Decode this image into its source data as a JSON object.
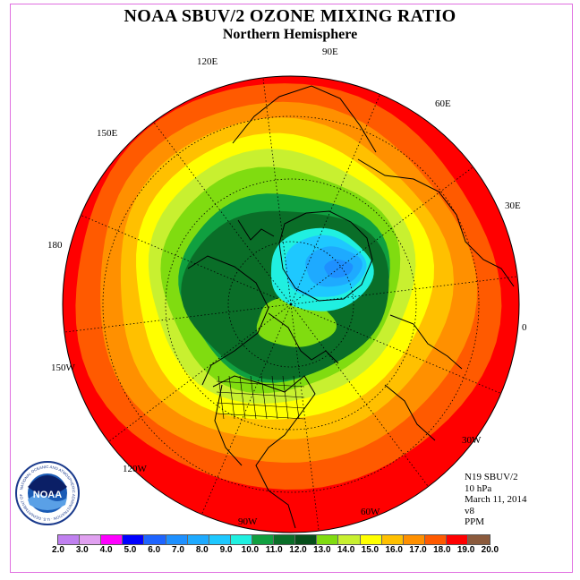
{
  "title": "NOAA SBUV/2 OZONE MIXING RATIO",
  "subtitle": "Northern Hemisphere",
  "longitude_labels": [
    {
      "text": "90E",
      "id": "lon-90e"
    },
    {
      "text": "120E",
      "id": "lon-120e"
    },
    {
      "text": "60E",
      "id": "lon-60e"
    },
    {
      "text": "150E",
      "id": "lon-150e"
    },
    {
      "text": "30E",
      "id": "lon-30e"
    },
    {
      "text": "180",
      "id": "lon-180"
    },
    {
      "text": "0",
      "id": "lon-0"
    },
    {
      "text": "150W",
      "id": "lon-150w"
    },
    {
      "text": "30W",
      "id": "lon-30w"
    },
    {
      "text": "120W",
      "id": "lon-120w"
    },
    {
      "text": "60W",
      "id": "lon-60w"
    },
    {
      "text": "90W",
      "id": "lon-90w"
    }
  ],
  "info": {
    "satellite": "N19 SBUV/2",
    "pressure": "10 hPa",
    "date": "March 11, 2014",
    "version": "v8",
    "units": "PPM"
  },
  "logo": {
    "text": "NOAA",
    "ring_text": "NATIONAL OCEANIC AND ATMOSPHERIC ADMINISTRATION · U.S. DEPARTMENT OF COMMERCE"
  },
  "colorbar": {
    "labels": [
      "2.0",
      "3.0",
      "4.0",
      "5.0",
      "6.0",
      "7.0",
      "8.0",
      "9.0",
      "10.0",
      "11.0",
      "12.0",
      "13.0",
      "14.0",
      "15.0",
      "16.0",
      "17.0",
      "18.0",
      "19.0",
      "20.0"
    ],
    "colors": [
      "#c080f0",
      "#e0a0f0",
      "#ff00ff",
      "#0000ff",
      "#1e64ff",
      "#1e90ff",
      "#1eaaff",
      "#1ec8ff",
      "#20f0e0",
      "#10a040",
      "#0a6e28",
      "#064e1a",
      "#80dc10",
      "#c8f030",
      "#ffff00",
      "#ffc000",
      "#ff9000",
      "#ff5a00",
      "#ff0000",
      "#8b5a3c"
    ]
  },
  "map": {
    "contour_colors": {
      "outer": "#ff0000",
      "red_orange": "#ff5a00",
      "orange": "#ff9000",
      "amber": "#ffc000",
      "yellow": "#ffff00",
      "yellow_green": "#c8f030",
      "light_green": "#80dc10",
      "green": "#10a040",
      "dark_green": "#0a6e28",
      "cyan": "#20f0e0",
      "light_blue": "#1ec8ff",
      "blue": "#1eaaff",
      "deep_blue": "#1e90ff"
    }
  }
}
